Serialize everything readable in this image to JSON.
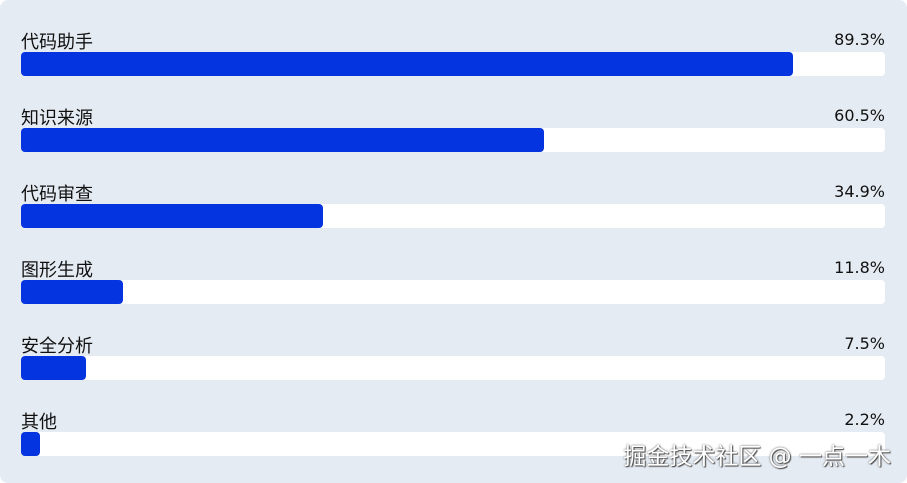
{
  "chart_data": {
    "type": "bar",
    "orientation": "horizontal",
    "categories": [
      "代码助手",
      "知识来源",
      "代码审查",
      "图形生成",
      "安全分析",
      "其他"
    ],
    "values": [
      89.3,
      60.5,
      34.9,
      11.8,
      7.5,
      2.2
    ],
    "value_labels": [
      "89.3%",
      "60.5%",
      "34.9%",
      "11.8%",
      "7.5%",
      "2.2%"
    ],
    "xlim": [
      0,
      100
    ],
    "bar_color": "#0433e0",
    "track_color": "#ffffff",
    "background": "#e5ebf2",
    "grid": false
  },
  "watermark": "掘金技术社区 @ 一点一木"
}
